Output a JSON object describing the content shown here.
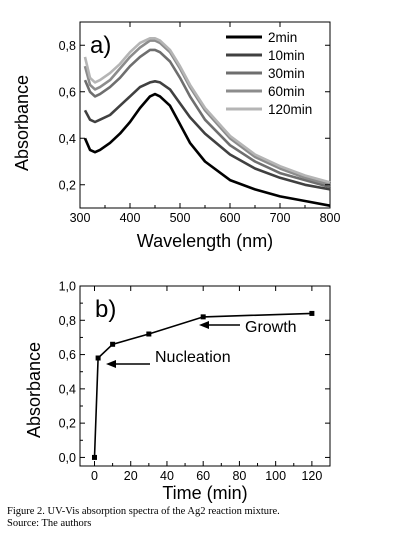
{
  "chart_data": [
    {
      "type": "line",
      "panel_label": "a)",
      "xlabel": "Wavelength (nm)",
      "ylabel": "Absorbance",
      "xlim": [
        300,
        800
      ],
      "ylim": [
        0.1,
        0.9
      ],
      "x_ticks": [
        "300",
        "400",
        "500",
        "600",
        "700",
        "800"
      ],
      "y_ticks": [
        "0,2",
        "0,4",
        "0,6",
        "0,8"
      ],
      "legend_position": "top-right",
      "x": [
        310,
        320,
        330,
        340,
        360,
        380,
        400,
        420,
        440,
        450,
        460,
        480,
        500,
        520,
        550,
        600,
        650,
        700,
        750,
        800
      ],
      "series": [
        {
          "name": "2min",
          "color": "#000000",
          "values": [
            0.4,
            0.35,
            0.34,
            0.35,
            0.38,
            0.42,
            0.47,
            0.53,
            0.58,
            0.59,
            0.58,
            0.54,
            0.46,
            0.38,
            0.3,
            0.22,
            0.18,
            0.15,
            0.13,
            0.11
          ]
        },
        {
          "name": "10min",
          "color": "#404040",
          "values": [
            0.52,
            0.48,
            0.47,
            0.48,
            0.5,
            0.54,
            0.58,
            0.62,
            0.64,
            0.645,
            0.64,
            0.61,
            0.55,
            0.49,
            0.42,
            0.33,
            0.27,
            0.23,
            0.2,
            0.18
          ]
        },
        {
          "name": "30min",
          "color": "#6e6e6e",
          "values": [
            0.65,
            0.6,
            0.58,
            0.59,
            0.62,
            0.66,
            0.71,
            0.75,
            0.78,
            0.78,
            0.77,
            0.73,
            0.66,
            0.58,
            0.48,
            0.37,
            0.3,
            0.25,
            0.22,
            0.19
          ]
        },
        {
          "name": "60min",
          "color": "#8c8c8c",
          "values": [
            0.71,
            0.63,
            0.61,
            0.62,
            0.65,
            0.7,
            0.75,
            0.79,
            0.82,
            0.82,
            0.81,
            0.77,
            0.7,
            0.62,
            0.52,
            0.4,
            0.32,
            0.27,
            0.23,
            0.2
          ]
        },
        {
          "name": "120min",
          "color": "#b5b5b5",
          "values": [
            0.75,
            0.66,
            0.64,
            0.65,
            0.68,
            0.72,
            0.77,
            0.81,
            0.83,
            0.83,
            0.82,
            0.78,
            0.71,
            0.63,
            0.53,
            0.41,
            0.33,
            0.28,
            0.24,
            0.21
          ]
        }
      ]
    },
    {
      "type": "line",
      "panel_label": "b)",
      "xlabel": "Time (min)",
      "ylabel": "Absorbance",
      "xlim": [
        -8,
        130
      ],
      "ylim": [
        -0.05,
        1.0
      ],
      "x_ticks": [
        "0",
        "20",
        "40",
        "60",
        "80",
        "100",
        "120"
      ],
      "y_ticks": [
        "0,0",
        "0,2",
        "0,4",
        "0,6",
        "0,8",
        "1,0"
      ],
      "x": [
        0,
        2,
        10,
        30,
        60,
        120
      ],
      "values": [
        0.0,
        0.58,
        0.66,
        0.72,
        0.82,
        0.84
      ],
      "annotations": [
        {
          "text": "Nucleation",
          "points_to_x": 2
        },
        {
          "text": "Growth",
          "points_to_x": 60
        }
      ]
    }
  ],
  "caption": {
    "line1": "Figure 2. UV-Vis absorption spectra of the Ag2 reaction mixture.",
    "line2": "Source: The authors"
  }
}
